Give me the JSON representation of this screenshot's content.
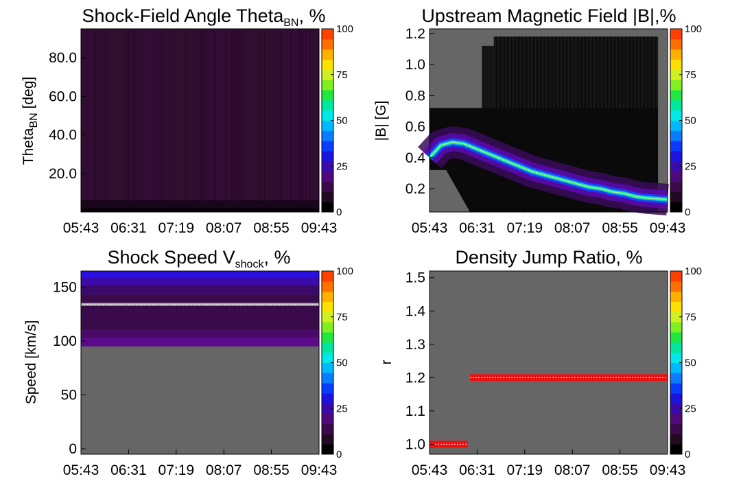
{
  "palette": [
    "#000000",
    "#230a23",
    "#3a0a4a",
    "#4e0a7a",
    "#3a0aaa",
    "#1a14dd",
    "#0a3cff",
    "#0a7cff",
    "#00b8ff",
    "#00e8e8",
    "#00e8a0",
    "#20e840",
    "#80f020",
    "#d0f020",
    "#ffe000",
    "#ffb000",
    "#ff7000",
    "#ff4000"
  ],
  "chart_data": [
    {
      "type": "heatmap",
      "title": "Shock-Field Angle Theta",
      "title_sub": "BN",
      "title_suffix": ", %",
      "ylabel": "Theta",
      "ylabel_sub": "BN",
      "ylabel_suffix": " [deg]",
      "ylim": [
        0,
        95
      ],
      "y_ticks": [
        20,
        40,
        60,
        80
      ],
      "y_tick_labels": [
        "20.0",
        "40.0",
        "60.0",
        "80.0"
      ],
      "x_tick_labels": [
        "05:43",
        "06:31",
        "07:19",
        "08:07",
        "08:55",
        "09:43"
      ],
      "colorbar": {
        "range": [
          0,
          100
        ],
        "tick_labels": [
          "0",
          "25",
          "50",
          "75",
          "100"
        ]
      },
      "background": "#2e0c2e"
    },
    {
      "type": "heatmap",
      "title": "Upstream Magnetic Field |B|,%",
      "ylabel": "|B| [G]",
      "ylim": [
        0.05,
        1.23
      ],
      "y_ticks": [
        0.2,
        0.4,
        0.6,
        0.8,
        1.0,
        1.2
      ],
      "y_tick_labels": [
        "0.2",
        "0.4",
        "0.6",
        "0.8",
        "1.0",
        "1.2"
      ],
      "x_tick_labels": [
        "05:43",
        "06:31",
        "07:19",
        "08:07",
        "08:55",
        "09:43"
      ],
      "colorbar": {
        "range": [
          0,
          100
        ],
        "tick_labels": [
          "0",
          "25",
          "50",
          "75",
          "100"
        ]
      },
      "ridge": {
        "x_frac": [
          0.0,
          0.05,
          0.1,
          0.15,
          0.2,
          0.25,
          0.3,
          0.35,
          0.4,
          0.45,
          0.5,
          0.55,
          0.6,
          0.65,
          0.7,
          0.75,
          0.8,
          0.85,
          0.9,
          0.95,
          1.0
        ],
        "b": [
          0.4,
          0.48,
          0.5,
          0.49,
          0.46,
          0.43,
          0.4,
          0.37,
          0.34,
          0.31,
          0.29,
          0.27,
          0.25,
          0.23,
          0.21,
          0.2,
          0.18,
          0.17,
          0.15,
          0.14,
          0.13
        ]
      }
    },
    {
      "type": "heatmap",
      "title": "Shock Speed V",
      "title_sub": "shock",
      "title_suffix": ", %",
      "ylabel": "Speed [km/s]",
      "ylim": [
        -5,
        165
      ],
      "y_ticks": [
        0,
        50,
        100,
        150
      ],
      "y_tick_labels": [
        "0",
        "50",
        "100",
        "150"
      ],
      "x_tick_labels": [
        "05:43",
        "06:31",
        "07:19",
        "08:07",
        "08:55",
        "09:43"
      ],
      "colorbar": {
        "range": [
          0,
          100
        ],
        "tick_labels": [
          "0",
          "25",
          "50",
          "75",
          "100"
        ]
      },
      "filled_range": [
        95,
        165
      ],
      "ridge_value": 134
    },
    {
      "type": "heatmap",
      "title": "Density Jump Ratio, %",
      "ylabel": "r",
      "ylim": [
        0.97,
        1.52
      ],
      "y_ticks": [
        1.0,
        1.1,
        1.2,
        1.3,
        1.4,
        1.5
      ],
      "y_tick_labels": [
        "1.0",
        "1.1",
        "1.2",
        "1.3",
        "1.4",
        "1.5"
      ],
      "x_tick_labels": [
        "05:43",
        "06:31",
        "07:19",
        "08:07",
        "08:55",
        "09:43"
      ],
      "colorbar": {
        "range": [
          0,
          100
        ],
        "tick_labels": [
          "0",
          "25",
          "50",
          "75",
          "100"
        ]
      },
      "bands": [
        {
          "x_start_frac": 0.0,
          "x_end_frac": 0.16,
          "value": 1.0
        },
        {
          "x_start_frac": 0.17,
          "x_end_frac": 1.0,
          "value": 1.2
        }
      ]
    }
  ]
}
